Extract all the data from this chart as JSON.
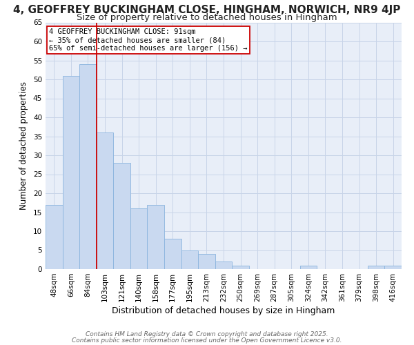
{
  "title_line1": "4, GEOFFREY BUCKINGHAM CLOSE, HINGHAM, NORWICH, NR9 4JP",
  "title_line2": "Size of property relative to detached houses in Hingham",
  "xlabel": "Distribution of detached houses by size in Hingham",
  "ylabel": "Number of detached properties",
  "categories": [
    "48sqm",
    "66sqm",
    "84sqm",
    "103sqm",
    "121sqm",
    "140sqm",
    "158sqm",
    "177sqm",
    "195sqm",
    "213sqm",
    "232sqm",
    "250sqm",
    "269sqm",
    "287sqm",
    "305sqm",
    "324sqm",
    "342sqm",
    "361sqm",
    "379sqm",
    "398sqm",
    "416sqm"
  ],
  "values": [
    17,
    51,
    54,
    36,
    28,
    16,
    17,
    8,
    5,
    4,
    2,
    1,
    0,
    0,
    0,
    1,
    0,
    0,
    0,
    1,
    1
  ],
  "bar_color": "#c9d9f0",
  "bar_edge_color": "#8ab4de",
  "bar_width": 1.0,
  "red_line_x": 2.5,
  "red_line_color": "#cc0000",
  "annotation_text": "4 GEOFFREY BUCKINGHAM CLOSE: 91sqm\n← 35% of detached houses are smaller (84)\n65% of semi-detached houses are larger (156) →",
  "annotation_box_color": "#ffffff",
  "annotation_box_edge": "#cc0000",
  "ylim": [
    0,
    65
  ],
  "yticks": [
    0,
    5,
    10,
    15,
    20,
    25,
    30,
    35,
    40,
    45,
    50,
    55,
    60,
    65
  ],
  "footnote_line1": "Contains HM Land Registry data © Crown copyright and database right 2025.",
  "footnote_line2": "Contains public sector information licensed under the Open Government Licence v3.0.",
  "grid_color": "#c8d4e8",
  "plot_bg_color": "#e8eef8",
  "fig_bg_color": "#ffffff",
  "title1_fontsize": 11,
  "title2_fontsize": 9.5,
  "xlabel_fontsize": 9,
  "ylabel_fontsize": 8.5,
  "tick_fontsize": 7.5,
  "annot_fontsize": 7.5,
  "footnote_fontsize": 6.5
}
